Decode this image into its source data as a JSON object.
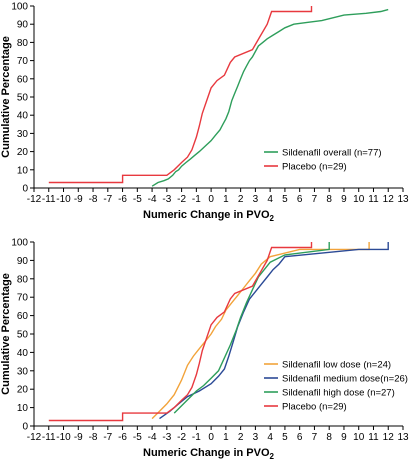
{
  "chart_data": [
    {
      "type": "line",
      "step": true,
      "xlabel": "Numeric Change in PVO",
      "xlabel_subscript": "2",
      "ylabel": "Cumulative Percentage",
      "xlim": [
        -12,
        13
      ],
      "ylim": [
        0,
        100
      ],
      "xticks": [
        -12,
        -11,
        -10,
        -9,
        -8,
        -7,
        -6,
        -5,
        -4,
        -3,
        -2,
        -1,
        0,
        1,
        2,
        3,
        4,
        5,
        6,
        7,
        8,
        9,
        10,
        11,
        12,
        13
      ],
      "yticks": [
        0,
        10,
        20,
        30,
        40,
        50,
        60,
        70,
        80,
        90,
        100
      ],
      "legend_position": "bottom-right",
      "series": [
        {
          "name": "Sildenafil overall (n=77)",
          "color": "#2e9e5b",
          "points": [
            [
              -4,
              1
            ],
            [
              -3.6,
              3
            ],
            [
              -3.2,
              4
            ],
            [
              -2.9,
              5
            ],
            [
              -2.6,
              7
            ],
            [
              -2.4,
              9
            ],
            [
              -2.2,
              10
            ],
            [
              -2,
              12
            ],
            [
              -1.7,
              14
            ],
            [
              -1.4,
              16
            ],
            [
              -1.1,
              18
            ],
            [
              -0.8,
              20
            ],
            [
              -0.4,
              23
            ],
            [
              0,
              26
            ],
            [
              0.3,
              29
            ],
            [
              0.6,
              32
            ],
            [
              0.8,
              35
            ],
            [
              1,
              38
            ],
            [
              1.2,
              42
            ],
            [
              1.4,
              48
            ],
            [
              1.6,
              52
            ],
            [
              1.8,
              56
            ],
            [
              2,
              60
            ],
            [
              2.2,
              64
            ],
            [
              2.4,
              67
            ],
            [
              2.6,
              70
            ],
            [
              2.8,
              72
            ],
            [
              3,
              75
            ],
            [
              3.2,
              78
            ],
            [
              3.5,
              80
            ],
            [
              3.8,
              82
            ],
            [
              4.2,
              84
            ],
            [
              4.6,
              86
            ],
            [
              5,
              88
            ],
            [
              5.6,
              90
            ],
            [
              6.5,
              91
            ],
            [
              7.5,
              92
            ],
            [
              9,
              95
            ],
            [
              10.5,
              96
            ],
            [
              11.5,
              97
            ],
            [
              12,
              98
            ]
          ]
        },
        {
          "name": "Placebo (n=29)",
          "color": "#e8393f",
          "points": [
            [
              -11,
              3
            ],
            [
              -6,
              3
            ],
            [
              -6,
              7
            ],
            [
              -3,
              7
            ],
            [
              -2.5,
              10
            ],
            [
              -2,
              14
            ],
            [
              -1.6,
              17
            ],
            [
              -1.3,
              21
            ],
            [
              -1,
              28
            ],
            [
              -0.8,
              34
            ],
            [
              -0.6,
              41
            ],
            [
              -0.3,
              48
            ],
            [
              0,
              55
            ],
            [
              0.4,
              59
            ],
            [
              0.9,
              62
            ],
            [
              1.3,
              69
            ],
            [
              1.6,
              72
            ],
            [
              2.8,
              76
            ],
            [
              3.3,
              83
            ],
            [
              3.8,
              90
            ],
            [
              4.1,
              97
            ],
            [
              6.8,
              97
            ],
            [
              6.8,
              100
            ]
          ]
        }
      ]
    },
    {
      "type": "line",
      "step": true,
      "xlabel": "Numeric Change in PVO",
      "xlabel_subscript": "2",
      "ylabel": "Cumulative Percentage",
      "xlim": [
        -12,
        13
      ],
      "ylim": [
        0,
        100
      ],
      "xticks": [
        -12,
        -11,
        -10,
        -9,
        -8,
        -7,
        -6,
        -5,
        -4,
        -3,
        -2,
        -1,
        0,
        1,
        2,
        3,
        4,
        5,
        6,
        7,
        8,
        9,
        10,
        11,
        12,
        13
      ],
      "yticks": [
        0,
        10,
        20,
        30,
        40,
        50,
        60,
        70,
        80,
        90,
        100
      ],
      "legend_position": "bottom-right",
      "series": [
        {
          "name": "Sildenafil low dose (n=24)",
          "color": "#f2a33a",
          "points": [
            [
              -4,
              4
            ],
            [
              -3.5,
              8
            ],
            [
              -3,
              12
            ],
            [
              -2.5,
              17
            ],
            [
              -2,
              25
            ],
            [
              -1.6,
              33
            ],
            [
              -1.2,
              38
            ],
            [
              -0.8,
              42
            ],
            [
              -0.4,
              46
            ],
            [
              0,
              50
            ],
            [
              0.3,
              54
            ],
            [
              0.7,
              58
            ],
            [
              1,
              63
            ],
            [
              1.4,
              67
            ],
            [
              1.8,
              71
            ],
            [
              2.2,
              75
            ],
            [
              2.6,
              79
            ],
            [
              3,
              83
            ],
            [
              3.4,
              88
            ],
            [
              4,
              92
            ],
            [
              6,
              96
            ],
            [
              10.7,
              96
            ],
            [
              10.7,
              100
            ]
          ]
        },
        {
          "name": "Sildenafil medium dose(n=26)",
          "color": "#2b4a96",
          "points": [
            [
              -3.5,
              4
            ],
            [
              -2.8,
              8
            ],
            [
              -2.2,
              12
            ],
            [
              -1.6,
              16
            ],
            [
              -0.8,
              19
            ],
            [
              0,
              23
            ],
            [
              0.5,
              27
            ],
            [
              0.9,
              31
            ],
            [
              1.2,
              38
            ],
            [
              1.5,
              46
            ],
            [
              1.8,
              54
            ],
            [
              2.2,
              62
            ],
            [
              2.6,
              69
            ],
            [
              3,
              73
            ],
            [
              3.4,
              77
            ],
            [
              3.8,
              81
            ],
            [
              4.2,
              85
            ],
            [
              4.6,
              88
            ],
            [
              5,
              92
            ],
            [
              10,
              96
            ],
            [
              12,
              96
            ],
            [
              12,
              100
            ]
          ]
        },
        {
          "name": "Sildenafil high dose (n=27)",
          "color": "#2e9e5b",
          "points": [
            [
              -2.5,
              7
            ],
            [
              -2,
              11
            ],
            [
              -1.5,
              15
            ],
            [
              -1,
              19
            ],
            [
              -0.5,
              22
            ],
            [
              0,
              26
            ],
            [
              0.5,
              30
            ],
            [
              0.9,
              37
            ],
            [
              1.3,
              44
            ],
            [
              1.7,
              52
            ],
            [
              2,
              59
            ],
            [
              2.4,
              67
            ],
            [
              2.8,
              74
            ],
            [
              3.2,
              81
            ],
            [
              3.6,
              85
            ],
            [
              4,
              89
            ],
            [
              5,
              93
            ],
            [
              8,
              96
            ],
            [
              8,
              100
            ]
          ]
        },
        {
          "name": "Placebo (n=29)",
          "color": "#e8393f",
          "points": [
            [
              -11,
              3
            ],
            [
              -6,
              3
            ],
            [
              -6,
              7
            ],
            [
              -3,
              7
            ],
            [
              -2.5,
              10
            ],
            [
              -2,
              14
            ],
            [
              -1.6,
              17
            ],
            [
              -1.3,
              21
            ],
            [
              -1,
              28
            ],
            [
              -0.8,
              34
            ],
            [
              -0.6,
              41
            ],
            [
              -0.3,
              48
            ],
            [
              0,
              55
            ],
            [
              0.4,
              59
            ],
            [
              0.9,
              62
            ],
            [
              1.3,
              69
            ],
            [
              1.6,
              72
            ],
            [
              2.8,
              76
            ],
            [
              3.3,
              83
            ],
            [
              3.8,
              90
            ],
            [
              4.1,
              97
            ],
            [
              6.8,
              97
            ],
            [
              6.8,
              100
            ]
          ]
        }
      ]
    }
  ]
}
